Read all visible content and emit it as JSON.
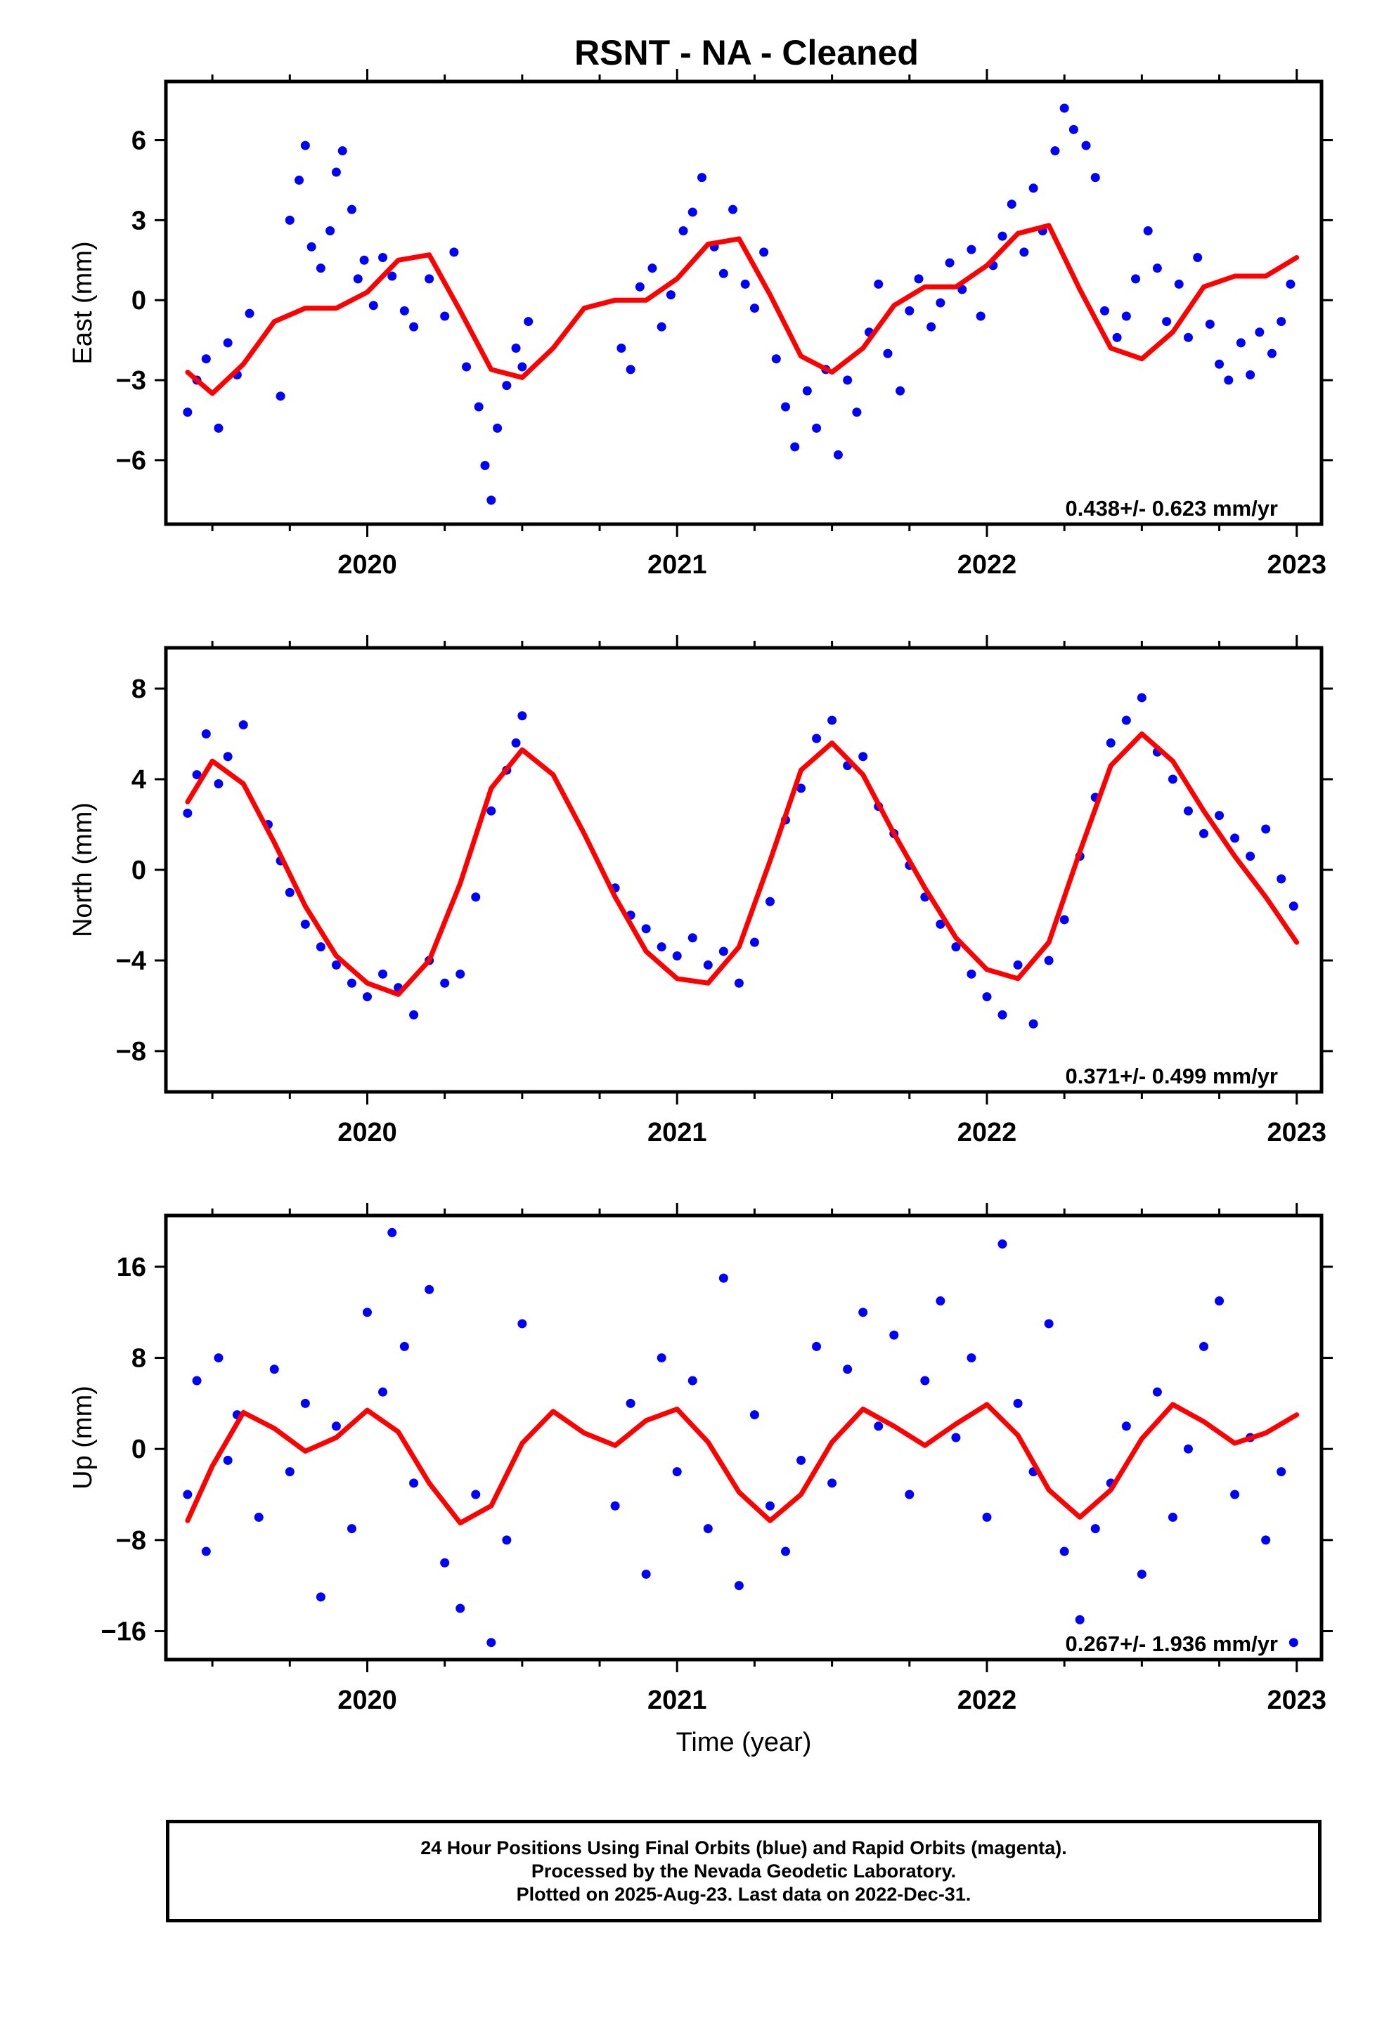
{
  "title": "RSNT  - NA - Cleaned",
  "chart_data": [
    {
      "type": "scatter",
      "id": "east",
      "ylabel": "East (mm)",
      "xlim": [
        2019.35,
        2023.08
      ],
      "ylim": [
        -8.4,
        8.2
      ],
      "yticks": [
        -6,
        -3,
        0,
        3,
        6
      ],
      "xticks": [
        2020,
        2021,
        2022,
        2023
      ],
      "rate_label": "0.438+/- 0.623 mm/yr",
      "series": [
        {
          "name": "",
          "kind": "points",
          "color": "#0000ff",
          "x": [
            2019.42,
            2019.45,
            2019.48,
            2019.52,
            2019.55,
            2019.58,
            2019.62,
            2019.72,
            2019.75,
            2019.78,
            2019.8,
            2019.82,
            2019.85,
            2019.88,
            2019.9,
            2019.92,
            2019.95,
            2019.97,
            2019.99,
            2020.02,
            2020.05,
            2020.08,
            2020.12,
            2020.15,
            2020.2,
            2020.25,
            2020.28,
            2020.32,
            2020.36,
            2020.38,
            2020.4,
            2020.42,
            2020.45,
            2020.48,
            2020.5,
            2020.52,
            2020.82,
            2020.85,
            2020.88,
            2020.92,
            2020.95,
            2020.98,
            2021.02,
            2021.05,
            2021.08,
            2021.12,
            2021.15,
            2021.18,
            2021.22,
            2021.25,
            2021.28,
            2021.32,
            2021.35,
            2021.38,
            2021.42,
            2021.45,
            2021.48,
            2021.52,
            2021.55,
            2021.58,
            2021.62,
            2021.65,
            2021.68,
            2021.72,
            2021.75,
            2021.78,
            2021.82,
            2021.85,
            2021.88,
            2021.92,
            2021.95,
            2021.98,
            2022.02,
            2022.05,
            2022.08,
            2022.12,
            2022.15,
            2022.18,
            2022.22,
            2022.25,
            2022.28,
            2022.32,
            2022.35,
            2022.38,
            2022.42,
            2022.45,
            2022.48,
            2022.52,
            2022.55,
            2022.58,
            2022.62,
            2022.65,
            2022.68,
            2022.72,
            2022.75,
            2022.78,
            2022.82,
            2022.85,
            2022.88,
            2022.92,
            2022.95,
            2022.98
          ],
          "y": [
            -4.2,
            -3.0,
            -2.2,
            -4.8,
            -1.6,
            -2.8,
            -0.5,
            -3.6,
            3.0,
            4.5,
            5.8,
            2.0,
            1.2,
            2.6,
            4.8,
            5.6,
            3.4,
            0.8,
            1.5,
            -0.2,
            1.6,
            0.9,
            -0.4,
            -1.0,
            0.8,
            -0.6,
            1.8,
            -2.5,
            -4.0,
            -6.2,
            -7.5,
            -4.8,
            -3.2,
            -1.8,
            -2.5,
            -0.8,
            -1.8,
            -2.6,
            0.5,
            1.2,
            -1.0,
            0.2,
            2.6,
            3.3,
            4.6,
            2.0,
            1.0,
            3.4,
            0.6,
            -0.3,
            1.8,
            -2.2,
            -4.0,
            -5.5,
            -3.4,
            -4.8,
            -2.6,
            -5.8,
            -3.0,
            -4.2,
            -1.2,
            0.6,
            -2.0,
            -3.4,
            -0.4,
            0.8,
            -1.0,
            -0.1,
            1.4,
            0.4,
            1.9,
            -0.6,
            1.3,
            2.4,
            3.6,
            1.8,
            4.2,
            2.6,
            5.6,
            7.2,
            6.4,
            5.8,
            4.6,
            -0.4,
            -1.4,
            -0.6,
            0.8,
            2.6,
            1.2,
            -0.8,
            0.6,
            -1.4,
            1.6,
            -0.9,
            -2.4,
            -3.0,
            -1.6,
            -2.8,
            -1.2,
            -2.0,
            -0.8,
            0.6
          ]
        },
        {
          "name": "",
          "kind": "curve",
          "color": "#ff0000",
          "x": [
            2019.42,
            2019.5,
            2019.6,
            2019.7,
            2019.8,
            2019.9,
            2020.0,
            2020.1,
            2020.2,
            2020.3,
            2020.4,
            2020.5,
            2020.6,
            2020.7,
            2020.8,
            2020.9,
            2021.0,
            2021.1,
            2021.2,
            2021.3,
            2021.4,
            2021.5,
            2021.6,
            2021.7,
            2021.8,
            2021.9,
            2022.0,
            2022.1,
            2022.2,
            2022.3,
            2022.4,
            2022.5,
            2022.6,
            2022.7,
            2022.8,
            2022.9,
            2023.0
          ],
          "y": [
            -2.7,
            -3.5,
            -2.4,
            -0.8,
            -0.3,
            -0.3,
            0.3,
            1.5,
            1.7,
            -0.4,
            -2.6,
            -2.9,
            -1.8,
            -0.3,
            0.0,
            0.0,
            0.8,
            2.1,
            2.3,
            0.2,
            -2.1,
            -2.7,
            -1.8,
            -0.2,
            0.5,
            0.5,
            1.3,
            2.5,
            2.8,
            0.4,
            -1.8,
            -2.2,
            -1.2,
            0.5,
            0.9,
            0.9,
            1.6
          ]
        }
      ]
    },
    {
      "type": "scatter",
      "id": "north",
      "ylabel": "North (mm)",
      "xlim": [
        2019.35,
        2023.08
      ],
      "ylim": [
        -9.8,
        9.8
      ],
      "yticks": [
        -8,
        -4,
        0,
        4,
        8
      ],
      "xticks": [
        2020,
        2021,
        2022,
        2023
      ],
      "rate_label": "0.371+/- 0.499 mm/yr",
      "series": [
        {
          "name": "",
          "kind": "points",
          "color": "#0000ff",
          "x": [
            2019.42,
            2019.45,
            2019.48,
            2019.52,
            2019.55,
            2019.6,
            2019.68,
            2019.72,
            2019.75,
            2019.8,
            2019.85,
            2019.9,
            2019.95,
            2020.0,
            2020.05,
            2020.1,
            2020.15,
            2020.2,
            2020.25,
            2020.3,
            2020.35,
            2020.4,
            2020.45,
            2020.48,
            2020.5,
            2020.8,
            2020.85,
            2020.9,
            2020.95,
            2021.0,
            2021.05,
            2021.1,
            2021.15,
            2021.2,
            2021.25,
            2021.3,
            2021.35,
            2021.4,
            2021.45,
            2021.5,
            2021.55,
            2021.6,
            2021.65,
            2021.7,
            2021.75,
            2021.8,
            2021.85,
            2021.9,
            2021.95,
            2022.0,
            2022.05,
            2022.1,
            2022.15,
            2022.2,
            2022.25,
            2022.3,
            2022.35,
            2022.4,
            2022.45,
            2022.5,
            2022.55,
            2022.6,
            2022.65,
            2022.7,
            2022.75,
            2022.8,
            2022.85,
            2022.9,
            2022.95,
            2022.99
          ],
          "y": [
            2.5,
            4.2,
            6.0,
            3.8,
            5.0,
            6.4,
            2.0,
            0.4,
            -1.0,
            -2.4,
            -3.4,
            -4.2,
            -5.0,
            -5.6,
            -4.6,
            -5.2,
            -6.4,
            -4.0,
            -5.0,
            -4.6,
            -1.2,
            2.6,
            4.4,
            5.6,
            6.8,
            -0.8,
            -2.0,
            -2.6,
            -3.4,
            -3.8,
            -3.0,
            -4.2,
            -3.6,
            -5.0,
            -3.2,
            -1.4,
            2.2,
            3.6,
            5.8,
            6.6,
            4.6,
            5.0,
            2.8,
            1.6,
            0.2,
            -1.2,
            -2.4,
            -3.4,
            -4.6,
            -5.6,
            -6.4,
            -4.2,
            -6.8,
            -4.0,
            -2.2,
            0.6,
            3.2,
            5.6,
            6.6,
            7.6,
            5.2,
            4.0,
            2.6,
            1.6,
            2.4,
            1.4,
            0.6,
            1.8,
            -0.4,
            -1.6
          ]
        },
        {
          "name": "",
          "kind": "curve",
          "color": "#ff0000",
          "x": [
            2019.42,
            2019.5,
            2019.6,
            2019.7,
            2019.8,
            2019.9,
            2020.0,
            2020.1,
            2020.2,
            2020.3,
            2020.4,
            2020.5,
            2020.6,
            2020.7,
            2020.8,
            2020.9,
            2021.0,
            2021.1,
            2021.2,
            2021.3,
            2021.4,
            2021.5,
            2021.6,
            2021.7,
            2021.8,
            2021.9,
            2022.0,
            2022.1,
            2022.2,
            2022.3,
            2022.4,
            2022.5,
            2022.6,
            2022.7,
            2022.8,
            2022.9,
            2023.0
          ],
          "y": [
            3.0,
            4.8,
            3.8,
            1.2,
            -1.6,
            -3.8,
            -5.0,
            -5.5,
            -4.0,
            -0.6,
            3.6,
            5.3,
            4.2,
            1.6,
            -1.2,
            -3.6,
            -4.8,
            -5.0,
            -3.4,
            0.4,
            4.4,
            5.6,
            4.2,
            1.6,
            -0.8,
            -3.0,
            -4.4,
            -4.8,
            -3.2,
            0.8,
            4.6,
            6.0,
            4.8,
            2.6,
            0.6,
            -1.2,
            -3.2
          ]
        }
      ]
    },
    {
      "type": "scatter",
      "id": "up",
      "ylabel": "Up (mm)",
      "xlim": [
        2019.35,
        2023.08
      ],
      "ylim": [
        -18.5,
        20.5
      ],
      "yticks": [
        -16,
        -8,
        0,
        8,
        16
      ],
      "xticks": [
        2020,
        2021,
        2022,
        2023
      ],
      "xlabel": "Time (year)",
      "rate_label": "0.267+/- 1.936 mm/yr",
      "series": [
        {
          "name": "",
          "kind": "points",
          "color": "#0000ff",
          "x": [
            2019.42,
            2019.45,
            2019.48,
            2019.52,
            2019.55,
            2019.58,
            2019.65,
            2019.7,
            2019.75,
            2019.8,
            2019.85,
            2019.9,
            2019.95,
            2020.0,
            2020.05,
            2020.08,
            2020.12,
            2020.15,
            2020.2,
            2020.25,
            2020.3,
            2020.35,
            2020.4,
            2020.45,
            2020.5,
            2020.8,
            2020.85,
            2020.9,
            2020.95,
            2021.0,
            2021.05,
            2021.1,
            2021.15,
            2021.2,
            2021.25,
            2021.3,
            2021.35,
            2021.4,
            2021.45,
            2021.5,
            2021.55,
            2021.6,
            2021.65,
            2021.7,
            2021.75,
            2021.8,
            2021.85,
            2021.9,
            2021.95,
            2022.0,
            2022.05,
            2022.1,
            2022.15,
            2022.2,
            2022.25,
            2022.3,
            2022.35,
            2022.4,
            2022.45,
            2022.5,
            2022.55,
            2022.6,
            2022.65,
            2022.7,
            2022.75,
            2022.8,
            2022.85,
            2022.9,
            2022.95,
            2022.99
          ],
          "y": [
            -4.0,
            6.0,
            -9.0,
            8.0,
            -1.0,
            3.0,
            -6.0,
            7.0,
            -2.0,
            4.0,
            -13.0,
            2.0,
            -7.0,
            12.0,
            5.0,
            19.0,
            9.0,
            -3.0,
            14.0,
            -10.0,
            -14.0,
            -4.0,
            -17.0,
            -8.0,
            11.0,
            -5.0,
            4.0,
            -11.0,
            8.0,
            -2.0,
            6.0,
            -7.0,
            15.0,
            -12.0,
            3.0,
            -5.0,
            -9.0,
            -1.0,
            9.0,
            -3.0,
            7.0,
            12.0,
            2.0,
            10.0,
            -4.0,
            6.0,
            13.0,
            1.0,
            8.0,
            -6.0,
            18.0,
            4.0,
            -2.0,
            11.0,
            -9.0,
            -15.0,
            -7.0,
            -3.0,
            2.0,
            -11.0,
            5.0,
            -6.0,
            0.0,
            9.0,
            13.0,
            -4.0,
            1.0,
            -8.0,
            -2.0,
            -17.0
          ]
        },
        {
          "name": "",
          "kind": "curve",
          "color": "#ff0000",
          "x": [
            2019.42,
            2019.5,
            2019.6,
            2019.7,
            2019.8,
            2019.9,
            2020.0,
            2020.1,
            2020.2,
            2020.3,
            2020.4,
            2020.5,
            2020.6,
            2020.7,
            2020.8,
            2020.9,
            2021.0,
            2021.1,
            2021.2,
            2021.3,
            2021.4,
            2021.5,
            2021.6,
            2021.7,
            2021.8,
            2021.9,
            2022.0,
            2022.1,
            2022.2,
            2022.3,
            2022.4,
            2022.5,
            2022.6,
            2022.7,
            2022.8,
            2022.9,
            2023.0
          ],
          "y": [
            -6.3,
            -1.5,
            3.2,
            1.8,
            -0.2,
            1.0,
            3.4,
            1.5,
            -3.0,
            -6.5,
            -5.0,
            0.5,
            3.3,
            1.4,
            0.3,
            2.5,
            3.5,
            0.6,
            -3.8,
            -6.3,
            -4.0,
            0.6,
            3.5,
            2.0,
            0.3,
            2.2,
            3.9,
            1.2,
            -3.6,
            -6.0,
            -3.6,
            0.9,
            3.9,
            2.4,
            0.5,
            1.4,
            3.0
          ]
        }
      ]
    }
  ],
  "footer": {
    "line1": "24 Hour Positions Using Final Orbits (blue) and Rapid Orbits (magenta).",
    "line2": "Processed by the Nevada Geodetic Laboratory.",
    "line3": "Plotted on 2025-Aug-23. Last data on 2022-Dec-31."
  }
}
